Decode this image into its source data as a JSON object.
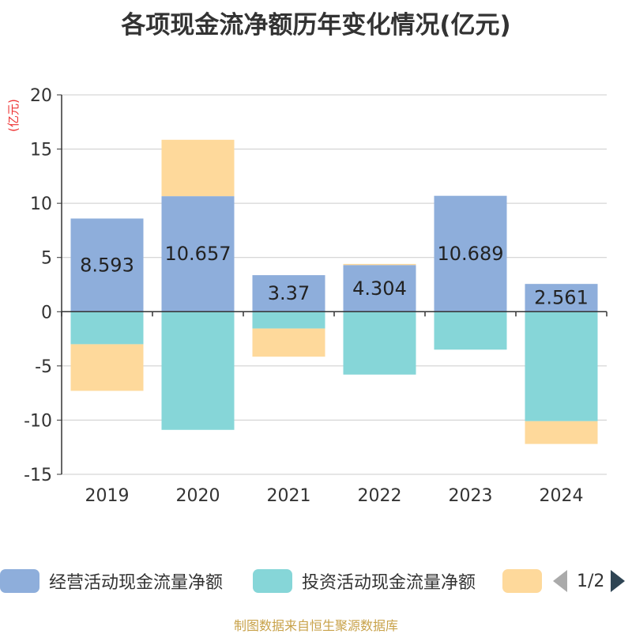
{
  "chart_data": {
    "type": "bar",
    "stacked": true,
    "title": "各项现金流净额历年变化情况(亿元)",
    "ylabel": "(亿元)",
    "xlabel": "",
    "categories": [
      "2019",
      "2020",
      "2021",
      "2022",
      "2023",
      "2024"
    ],
    "ylim": [
      -15,
      20
    ],
    "yticks": [
      20,
      15,
      10,
      5,
      0,
      -5,
      -10,
      -15
    ],
    "grid": true,
    "series": [
      {
        "name": "经营活动现金流量净额",
        "color": "#8eaedb",
        "values": [
          8.593,
          10.657,
          3.37,
          4.304,
          10.689,
          2.561
        ],
        "labels": [
          "8.593",
          "10.657",
          "3.37",
          "4.304",
          "10.689",
          "2.561"
        ]
      },
      {
        "name": "投资活动现金流量净额",
        "color": "#86d6d8",
        "values": [
          -3.0,
          -10.9,
          -1.55,
          -5.8,
          -3.5,
          -10.1
        ]
      },
      {
        "name": "",
        "color": "#fed99b",
        "values": [
          -4.3,
          5.2,
          -2.6,
          0.1,
          0.0,
          -2.1
        ]
      }
    ],
    "legend": {
      "position": "bottom",
      "page_text": "1/2"
    },
    "source": "制图数据来自恒生聚源数据库"
  }
}
